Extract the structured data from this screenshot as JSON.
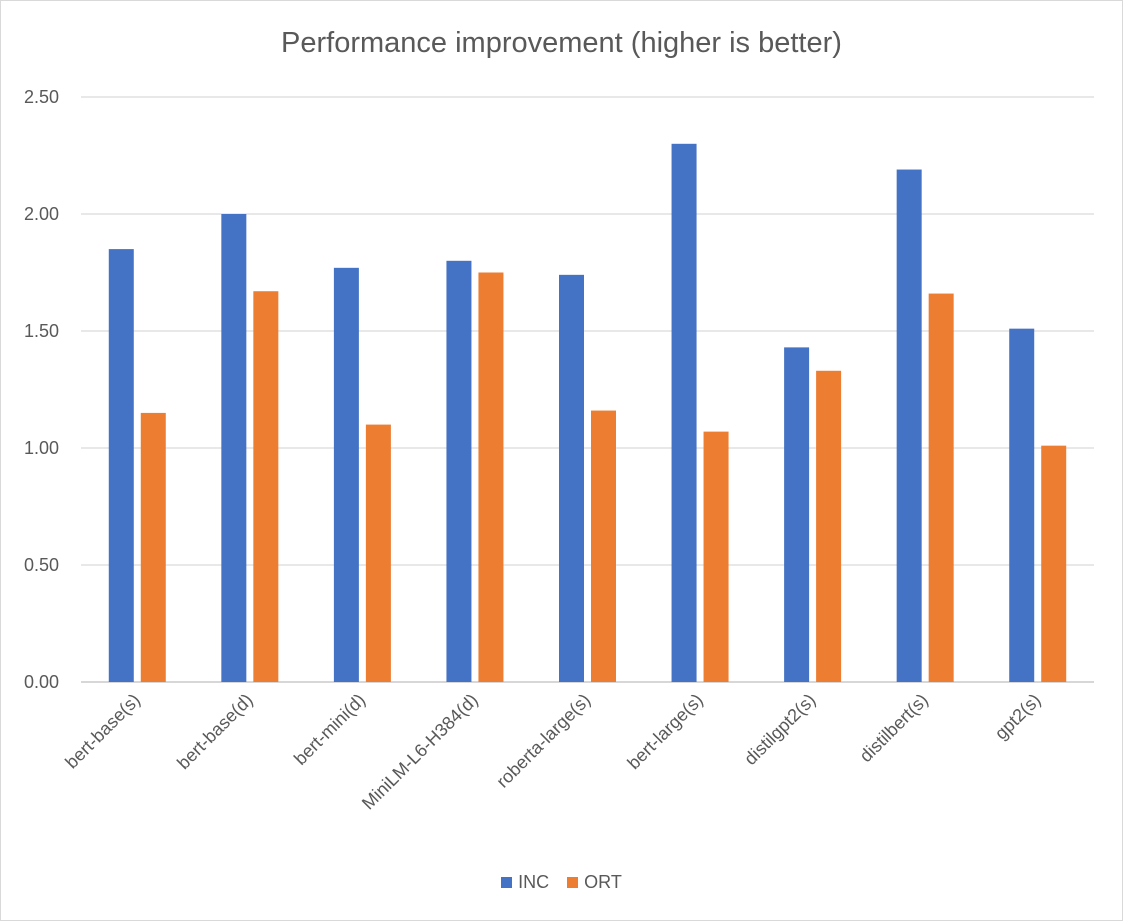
{
  "chart_data": {
    "type": "bar",
    "title": "Performance improvement (higher is better)",
    "xlabel": "",
    "ylabel": "",
    "ylim": [
      0,
      2.5
    ],
    "yticks": [
      "0.00",
      "0.50",
      "1.00",
      "1.50",
      "2.00",
      "2.50"
    ],
    "grid": true,
    "legend_position": "bottom",
    "categories": [
      "bert-base(s)",
      "bert-base(d)",
      "bert-mini(d)",
      "MiniLM-L6-H384(d)",
      "roberta-large(s)",
      "bert-large(s)",
      "distilgpt2(s)",
      "distilbert(s)",
      "gpt2(s)"
    ],
    "series": [
      {
        "name": "INC",
        "color": "#4472c4",
        "values": [
          1.85,
          2.0,
          1.77,
          1.8,
          1.74,
          2.3,
          1.43,
          2.19,
          1.51
        ]
      },
      {
        "name": "ORT",
        "color": "#ed7d31",
        "values": [
          1.15,
          1.67,
          1.1,
          1.75,
          1.16,
          1.07,
          1.33,
          1.66,
          1.01
        ]
      }
    ]
  }
}
